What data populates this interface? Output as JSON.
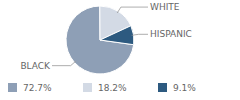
{
  "chart_data": {
    "type": "pie",
    "categories": [
      "BLACK",
      "WHITE",
      "HISPANIC"
    ],
    "values": [
      72.7,
      18.2,
      9.1
    ],
    "value_labels": [
      "72.7%",
      "18.2%",
      "9.1%"
    ],
    "colors": [
      "#8e9fb6",
      "#d3dae5",
      "#2d5a80"
    ],
    "legend": "bottom"
  }
}
